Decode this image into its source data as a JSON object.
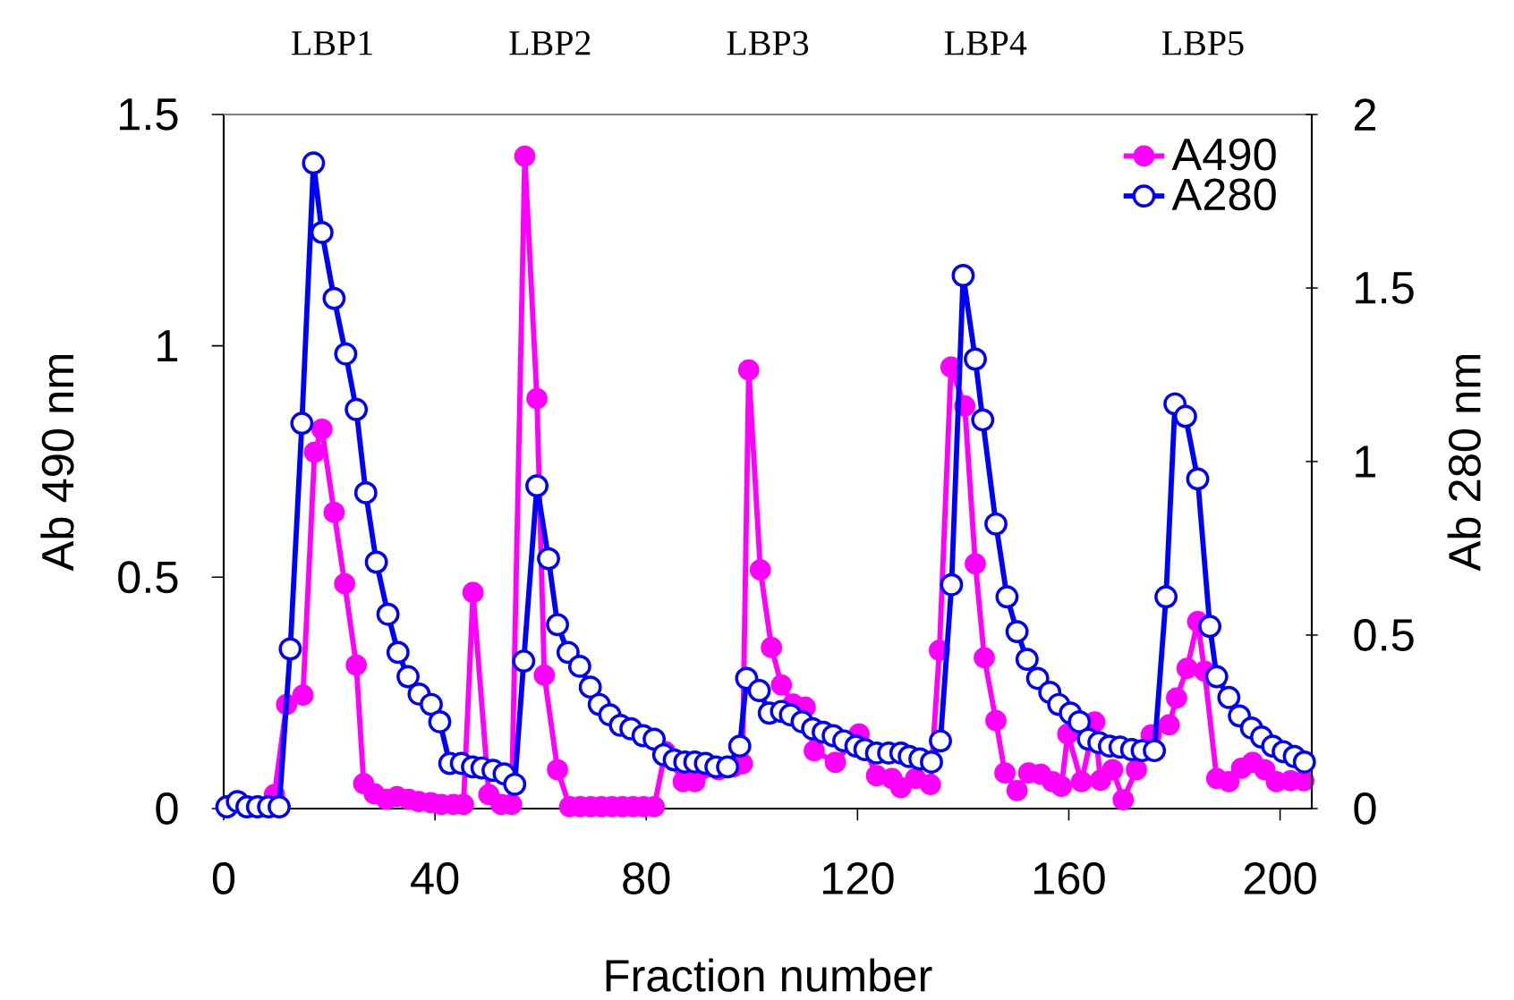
{
  "chart_data": {
    "type": "line",
    "xlabel": "Fraction number",
    "ylabel": "Ab 490 nm",
    "y2label": "Ab 280 nm",
    "xlim": [
      0,
      206
    ],
    "xticks": [
      0,
      40,
      80,
      120,
      160,
      200
    ],
    "ylim": [
      0,
      1.5
    ],
    "yticks": [
      0,
      0.5,
      1,
      1.5
    ],
    "y2lim": [
      0,
      2
    ],
    "y2ticks": [
      0,
      0.5,
      1,
      1.5,
      2
    ],
    "legend": "top right",
    "marker": "circle",
    "line_style": "solid",
    "annotations": [
      "LBP1",
      "LBP2",
      "LBP3",
      "LBP4",
      "LBP5"
    ],
    "series": [
      {
        "name": "A490",
        "color": "#ff00ff",
        "axis": "y",
        "x": [
          9.6,
          11.9,
          15.0,
          17.2,
          18.6,
          20.9,
          22.9,
          25.1,
          26.5,
          28.5,
          30.8,
          32.8,
          35.0,
          36.9,
          39.2,
          41.2,
          43.5,
          45.4,
          47.2,
          50.2,
          52.5,
          54.5,
          57.0,
          59.3,
          60.7,
          63.2,
          65.5,
          67.5,
          69.5,
          71.5,
          73.5,
          75.5,
          77.5,
          79.5,
          81.5,
          83.6,
          87.0,
          89.2,
          91.5,
          93.7,
          96.5,
          98.2,
          99.4,
          101.6,
          103.7,
          105.6,
          107.8,
          110.1,
          111.8,
          115.8,
          120.3,
          123.6,
          126.5,
          128.2,
          131.0,
          133.8,
          135.5,
          137.7,
          140.3,
          142.3,
          144.0,
          146.2,
          147.9,
          150.2,
          152.4,
          154.7,
          156.9,
          158.6,
          159.8,
          162.4,
          164.9,
          166.0,
          168.3,
          170.3,
          172.8,
          175.6,
          179.0,
          180.4,
          182.4,
          184.4,
          185.7,
          188.0,
          190.3,
          192.7,
          194.8,
          197.1,
          199.3,
          202.0,
          204.5
        ],
        "values": [
          0.03,
          0.225,
          0.245,
          0.77,
          0.82,
          0.64,
          0.486,
          0.31,
          0.054,
          0.032,
          0.02,
          0.026,
          0.02,
          0.015,
          0.013,
          0.009,
          0.009,
          0.009,
          0.467,
          0.03,
          0.009,
          0.009,
          1.41,
          0.886,
          0.288,
          0.084,
          0.004,
          0.004,
          0.004,
          0.004,
          0.004,
          0.004,
          0.004,
          0.004,
          0.004,
          0.123,
          0.058,
          0.058,
          null,
          0.084,
          0.09,
          0.097,
          0.948,
          0.516,
          0.348,
          0.267,
          0.226,
          0.219,
          0.125,
          0.1,
          0.161,
          0.071,
          0.065,
          0.045,
          0.065,
          0.052,
          0.342,
          0.954,
          0.87,
          0.529,
          0.326,
          0.19,
          0.077,
          0.039,
          0.077,
          0.074,
          0.058,
          0.048,
          0.161,
          0.058,
          0.187,
          0.061,
          0.084,
          0.019,
          0.084,
          0.159,
          0.181,
          0.239,
          0.303,
          0.404,
          0.297,
          0.065,
          0.058,
          0.087,
          0.1,
          0.084,
          0.058,
          0.06,
          0.06
        ]
      },
      {
        "name": "A280",
        "color": "#0000ff",
        "axis": "y2",
        "x": [
          0.6,
          2.6,
          4.4,
          6.4,
          8.5,
          10.5,
          12.6,
          14.8,
          17.0,
          18.6,
          20.9,
          23.1,
          25.1,
          26.9,
          28.9,
          31.1,
          33.0,
          34.9,
          37.0,
          39.3,
          40.9,
          42.8,
          45.0,
          47.1,
          48.9,
          51.0,
          53.1,
          55.1,
          56.8,
          59.3,
          61.5,
          63.2,
          65.2,
          67.4,
          69.4,
          71.1,
          73.1,
          75.1,
          77.1,
          79.4,
          81.5,
          83.3,
          85.3,
          87.3,
          89.2,
          91.2,
          93.2,
          95.4,
          97.7,
          99.0,
          101.4,
          103.3,
          105.6,
          107.3,
          109.5,
          111.5,
          113.5,
          115.4,
          117.4,
          119.7,
          121.4,
          123.6,
          125.9,
          128.2,
          129.8,
          131.8,
          134.0,
          135.7,
          137.8,
          140.0,
          142.3,
          143.7,
          146.2,
          148.3,
          150.2,
          152.1,
          154.1,
          156.4,
          158.1,
          160.3,
          162.0,
          163.7,
          165.7,
          167.7,
          169.7,
          171.9,
          173.9,
          176.2,
          178.4,
          180.1,
          182.1,
          184.4,
          186.7,
          188.0,
          190.3,
          192.3,
          194.6,
          196.5,
          198.6,
          200.6,
          202.7,
          204.6
        ],
        "values": [
          0.005,
          0.02,
          0.005,
          0.005,
          0.005,
          0.005,
          0.46,
          1.11,
          1.86,
          1.66,
          1.47,
          1.31,
          1.15,
          0.91,
          0.71,
          0.56,
          0.45,
          0.38,
          0.33,
          0.3,
          0.25,
          0.13,
          0.13,
          0.12,
          0.117,
          0.11,
          0.1,
          0.07,
          0.425,
          0.93,
          0.72,
          0.53,
          0.45,
          0.41,
          0.35,
          0.3,
          0.27,
          0.24,
          0.23,
          0.21,
          0.2,
          0.155,
          0.14,
          0.134,
          0.134,
          0.13,
          0.12,
          0.12,
          0.18,
          0.375,
          0.34,
          0.275,
          0.28,
          0.27,
          0.25,
          0.23,
          0.22,
          0.21,
          0.195,
          0.18,
          0.17,
          0.16,
          0.16,
          0.16,
          0.15,
          0.143,
          0.134,
          0.195,
          0.645,
          1.536,
          1.295,
          1.12,
          0.82,
          0.61,
          0.51,
          0.43,
          0.375,
          0.335,
          0.3,
          0.275,
          0.25,
          0.2,
          0.19,
          0.18,
          0.177,
          0.17,
          0.167,
          0.167,
          0.61,
          1.166,
          1.13,
          0.95,
          0.525,
          0.38,
          0.32,
          0.267,
          0.232,
          0.206,
          0.18,
          0.164,
          0.15,
          0.134
        ]
      }
    ]
  }
}
